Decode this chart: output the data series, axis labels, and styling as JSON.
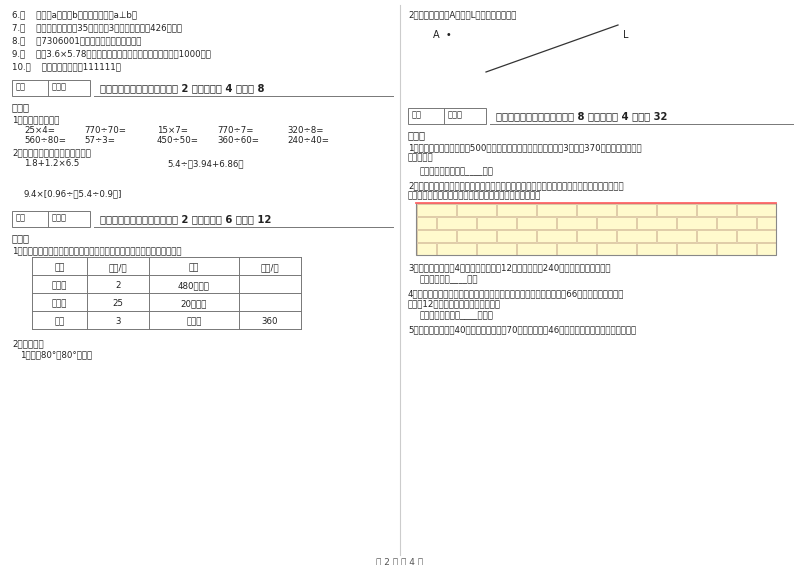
{
  "bg_color": "#ffffff",
  "text_color": "#222222",
  "brick_fill": "#fffacd",
  "brick_line": "#c8a87a",
  "page_footer": "第 2 页 共 4 页",
  "left_items": [
    "6.（    ）直线a与直线b互相垂直，记作a⊥b。",
    "7.（    ）用四舍五入法把35十位上的3去掉，得到的是426个十。",
    "8.（    ）7306001读作七千三百零六方零一。",
    "9.（    ）拨3.6×5.78中乘数的小数点都去掉，积会比原来扩大1000倍。",
    "10.（    ）最小的六位数是111111。"
  ],
  "section4_header": "四、看清题目，细心计算（公 2 小题，每题 4 分，公 8",
  "section4_sub": "分）。",
  "sec4_q1": "1、直接写出得数。",
  "sec4_row1": [
    "25×4=",
    "770÷70=",
    "15×7=",
    "770÷7=",
    "320÷8="
  ],
  "sec4_row2": [
    "560÷80=",
    "57÷3=",
    "450÷50=",
    "360÷60=",
    "240÷40="
  ],
  "sec4_q2": "2、用你最喜欢的方法递等计算。",
  "sec4_expr1": "1.8+1.2×6.5",
  "sec4_expr2": "5.4÷（3.94+6.86）",
  "sec4_expr3": "9.4×[0.96÷（5.4÷0.9）]",
  "section5_header": "五、认真思考，综合能力（公 2 小题，每题 6 分，公 12",
  "section5_sub": "分）。",
  "sec5_q1": "1、文具店一个月卖出的几种文具情况如下表，请在空格中填上适当的数。",
  "table_headers": [
    "品名",
    "单价/元",
    "数量",
    "总价/元"
  ],
  "table_rows": [
    [
      "笔记本",
      "2",
      "480（本）",
      ""
    ],
    [
      "计算器",
      "25",
      "20（台）",
      ""
    ],
    [
      "水笔",
      "3",
      "（支）",
      "360"
    ]
  ],
  "sec5_q2": "2、操作题：",
  "sec5_q2a": "1、画出80°、80°的角。",
  "right_q2": "2、过直线外一点A做直线L的平行线和垂线。",
  "right_A": "A  •",
  "right_L": "L",
  "section6_header": "六、应用知识，解决问题（公 8 小题，每题 4 分，公 32",
  "section6_sub": "分）。",
  "sec6_q1a": "1、车间第一星期生产零件500个，第二星期生产的比第一星期的3倍还多370个，两个星期共生",
  "sec6_q1b": "产多少个？",
  "sec6_ans1": "答：两个星期共生产____个。",
  "sec6_q2a": "2、建筑工人在砌墙时会在墙的两头分别固定两枚钉子，然后在钉子之间拉一条绳子，做出一条",
  "sec6_q2b": "直的参照线，这样砌出的墙是直的，你知道这是为什么吗？",
  "sec6_q3": "3、日用品商店买了4笱饮料，每笱饮料12瓶，一共花了240元。每瓶饮料多少元？",
  "sec6_ans3": "答：每瓶饮料____元。",
  "sec6_q4a": "4、小强步行去图书馆，小刚乘汽车到图书馆，汽车每小时比步行多行66千米，汽车的速度是",
  "sec6_q4b": "步行的12倍，汽车每小时行多少千米？",
  "sec6_ans4": "答：汽车每小时行____千米。",
  "sec6_q5": "5、学校啊啊队买了40套衣服，上衣每件70元，裤子每条46元，买上衣比裤子要多用多少元？"
}
